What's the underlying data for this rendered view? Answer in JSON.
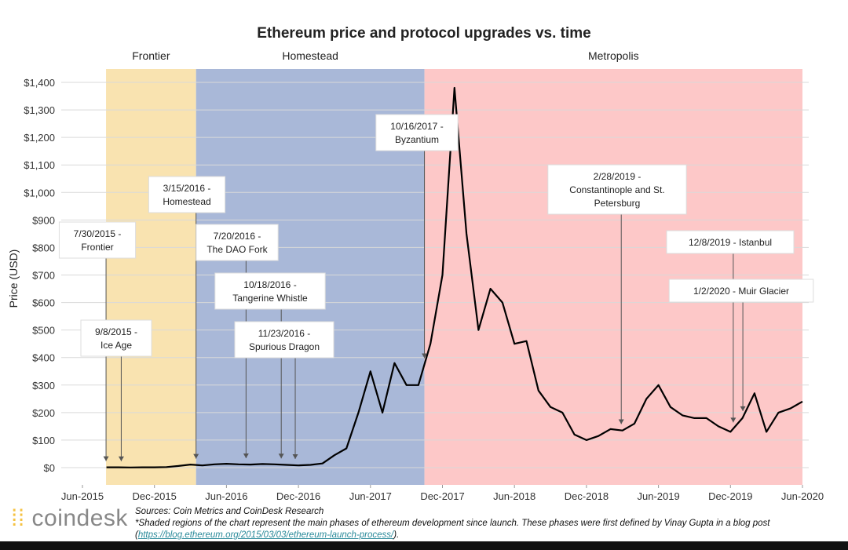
{
  "chart_data": {
    "type": "line",
    "title": "Ethereum price and protocol upgrades vs. time",
    "y_label": "Price (USD)",
    "grid": true,
    "x": [
      "2015-08",
      "2015-09",
      "2015-10",
      "2015-11",
      "2015-12",
      "2016-01",
      "2016-02",
      "2016-03",
      "2016-04",
      "2016-05",
      "2016-06",
      "2016-07",
      "2016-08",
      "2016-09",
      "2016-10",
      "2016-11",
      "2016-12",
      "2017-01",
      "2017-02",
      "2017-03",
      "2017-04",
      "2017-05",
      "2017-06",
      "2017-07",
      "2017-08",
      "2017-09",
      "2017-10",
      "2017-11",
      "2017-12",
      "2018-01",
      "2018-02",
      "2018-03",
      "2018-04",
      "2018-05",
      "2018-06",
      "2018-07",
      "2018-08",
      "2018-09",
      "2018-10",
      "2018-11",
      "2018-12",
      "2019-01",
      "2019-02",
      "2019-03",
      "2019-04",
      "2019-05",
      "2019-06",
      "2019-07",
      "2019-08",
      "2019-09",
      "2019-10",
      "2019-11",
      "2019-12",
      "2020-01",
      "2020-02",
      "2020-03",
      "2020-04",
      "2020-05",
      "2020-06"
    ],
    "series": [
      {
        "name": "Price",
        "color": "#000000",
        "values": [
          1,
          1,
          0.5,
          1,
          1,
          2,
          6,
          11,
          8,
          12,
          14,
          12,
          11,
          13,
          12,
          10,
          8,
          10,
          15,
          45,
          70,
          200,
          350,
          200,
          380,
          300,
          300,
          450,
          700,
          1380,
          850,
          500,
          650,
          600,
          450,
          460,
          280,
          220,
          200,
          120,
          100,
          115,
          140,
          135,
          160,
          250,
          300,
          220,
          190,
          180,
          180,
          150,
          130,
          180,
          270,
          130,
          200,
          215,
          240
        ]
      }
    ],
    "xlim": [
      "2015-06",
      "2020-06"
    ],
    "xticks": [
      {
        "value": "2015-06",
        "label": "Jun-2015"
      },
      {
        "value": "2015-12",
        "label": "Dec-2015"
      },
      {
        "value": "2016-06",
        "label": "Jun-2016"
      },
      {
        "value": "2016-12",
        "label": "Dec-2016"
      },
      {
        "value": "2017-06",
        "label": "Jun-2017"
      },
      {
        "value": "2017-12",
        "label": "Dec-2017"
      },
      {
        "value": "2018-06",
        "label": "Jun-2018"
      },
      {
        "value": "2018-12",
        "label": "Dec-2018"
      },
      {
        "value": "2019-06",
        "label": "Jun-2019"
      },
      {
        "value": "2019-12",
        "label": "Dec-2019"
      },
      {
        "value": "2020-06",
        "label": "Jun-2020"
      }
    ],
    "ylim": [
      0,
      1400
    ],
    "yticks": [
      {
        "value": 0,
        "label": "$0"
      },
      {
        "value": 100,
        "label": "$100"
      },
      {
        "value": 200,
        "label": "$200"
      },
      {
        "value": 300,
        "label": "$300"
      },
      {
        "value": 400,
        "label": "$400"
      },
      {
        "value": 500,
        "label": "$500"
      },
      {
        "value": 600,
        "label": "$600"
      },
      {
        "value": 700,
        "label": "$700"
      },
      {
        "value": 800,
        "label": "$800"
      },
      {
        "value": 900,
        "label": "$900"
      },
      {
        "value": 1000,
        "label": "$1,000"
      },
      {
        "value": 1100,
        "label": "$1,100"
      },
      {
        "value": 1200,
        "label": "$1,200"
      },
      {
        "value": 1300,
        "label": "$1,300"
      },
      {
        "value": 1400,
        "label": "$1,400"
      }
    ],
    "phases": [
      {
        "name": "Frontier",
        "start": "2015-07-30",
        "end": "2016-03-15",
        "color": "#f9e3b0"
      },
      {
        "name": "Homestead",
        "start": "2016-03-15",
        "end": "2017-10-16",
        "color": "#a9b8d8"
      },
      {
        "name": "Metropolis",
        "start": "2017-10-16",
        "end": "2020-06",
        "color": "#fdc8c8"
      }
    ],
    "annotations": [
      {
        "x": "2015-07-30",
        "lines": [
          "7/30/2015 -",
          "Frontier"
        ]
      },
      {
        "x": "2015-09-08",
        "lines": [
          "9/8/2015 -",
          "Ice Age"
        ]
      },
      {
        "x": "2016-03-15",
        "lines": [
          "3/15/2016 -",
          "Homestead"
        ]
      },
      {
        "x": "2016-07-20",
        "lines": [
          "7/20/2016 -",
          "The DAO Fork"
        ]
      },
      {
        "x": "2016-10-18",
        "lines": [
          "10/18/2016 -",
          "Tangerine Whistle"
        ]
      },
      {
        "x": "2016-11-23",
        "lines": [
          "11/23/2016 -",
          "Spurious Dragon"
        ]
      },
      {
        "x": "2017-10-16",
        "lines": [
          "10/16/2017 -",
          "Byzantium"
        ]
      },
      {
        "x": "2019-02-28",
        "lines": [
          "2/28/2019 -",
          "Constantinople and St.",
          "Petersburg"
        ]
      },
      {
        "x": "2019-12-08",
        "lines": [
          "12/8/2019 - Istanbul"
        ]
      },
      {
        "x": "2020-01-02",
        "lines": [
          "1/2/2020 - Muir Glacier"
        ]
      }
    ]
  },
  "footer": {
    "logo": "coindesk",
    "sources": "Sources: Coin Metrics and CoinDesk Research",
    "note": "*Shaded regions of the chart represent the main phases of ethereum development since launch. These phases were first defined by Vinay Gupta in a blog post (",
    "link": "https://blog.ethereum.org/2015/03/03/ethereum-launch-process/",
    "note_end": ")."
  }
}
